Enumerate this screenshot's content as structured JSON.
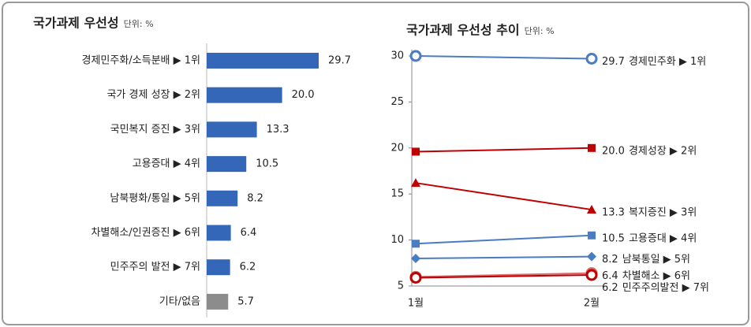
{
  "chart_data": [
    {
      "type": "bar",
      "orientation": "horizontal",
      "title": "국가과제 우선성",
      "unit": "단위: %",
      "categories": [
        "경제민주화/소득분배 ▶ 1위",
        "국가 경제 성장 ▶ 2위",
        "국민복지 증진 ▶ 3위",
        "고용증대 ▶ 4위",
        "남북평화/통일 ▶ 5위",
        "차별해소/인권증진 ▶ 6위",
        "민주주의 발전 ▶ 7위",
        "기타/없음"
      ],
      "values": [
        29.7,
        20.0,
        13.3,
        10.5,
        8.2,
        6.4,
        6.2,
        5.7
      ],
      "value_labels": [
        "29.7",
        "20.0",
        "13.3",
        "10.5",
        "8.2",
        "6.4",
        "6.2",
        "5.7"
      ],
      "colors": [
        "#3567b8",
        "#3567b8",
        "#3567b8",
        "#3567b8",
        "#3567b8",
        "#3567b8",
        "#3567b8",
        "#8c8c8c"
      ]
    },
    {
      "type": "line",
      "title": "국가과제 우선성 추이",
      "unit": "단위: %",
      "categories": [
        "1월",
        "2월"
      ],
      "ylim": [
        5,
        30
      ],
      "yticks": [
        5,
        10,
        15,
        20,
        25,
        30
      ],
      "series": [
        {
          "name": "경제민주화 ▶ 1위",
          "color": "#4a7cc4",
          "marker": "circle-open",
          "values": [
            30.0,
            29.7
          ],
          "value_labels": [
            null,
            "29.7"
          ]
        },
        {
          "name": "경제성장 ▶ 2위",
          "color": "#c00000",
          "marker": "square",
          "values": [
            19.6,
            20.0
          ],
          "value_labels": [
            null,
            "20.0"
          ]
        },
        {
          "name": "복지증진 ▶ 3위",
          "color": "#c00000",
          "marker": "triangle",
          "values": [
            16.2,
            13.3
          ],
          "value_labels": [
            null,
            "13.3"
          ]
        },
        {
          "name": "고용증대 ▶ 4위",
          "color": "#4a7cc4",
          "marker": "square",
          "values": [
            9.6,
            10.5
          ],
          "value_labels": [
            null,
            "10.5"
          ]
        },
        {
          "name": "남북통일 ▶ 5위",
          "color": "#4a7cc4",
          "marker": "diamond",
          "values": [
            8.0,
            8.2
          ],
          "value_labels": [
            null,
            "8.2"
          ]
        },
        {
          "name": "차별해소 ▶ 6위",
          "color": "#d46a6a",
          "marker": "circle-open",
          "values": [
            6.0,
            6.4
          ],
          "value_labels": [
            null,
            "6.4"
          ]
        },
        {
          "name": "민주주의발전 ▶ 7위",
          "color": "#c00000",
          "marker": "circle-open",
          "values": [
            5.9,
            6.2
          ],
          "value_labels": [
            null,
            "6.2"
          ]
        }
      ]
    }
  ]
}
